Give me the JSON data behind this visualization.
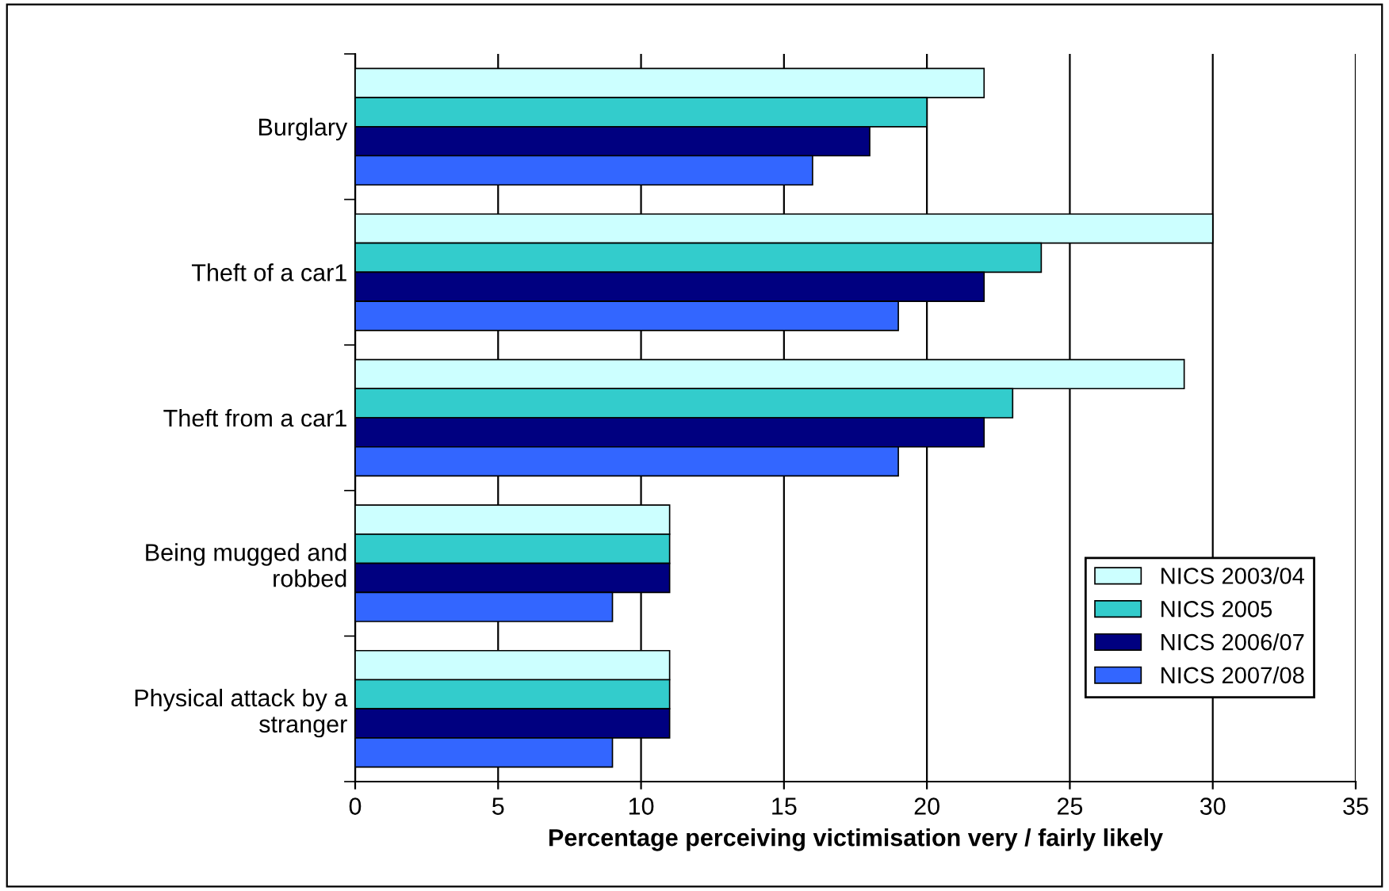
{
  "chart_data": {
    "type": "bar",
    "orientation": "horizontal",
    "xlabel": "Percentage perceiving victimisation very / fairly likely",
    "categories": [
      "Burglary",
      "Theft of a car1",
      "Theft from a car1",
      "Being mugged and\nrobbed",
      "Physical attack by a\nstranger"
    ],
    "series": [
      {
        "name": "NICS 2003/04",
        "color": "#ccffff",
        "values": [
          22,
          30,
          29,
          11,
          11
        ]
      },
      {
        "name": "NICS 2005",
        "color": "#33cccc",
        "values": [
          20,
          24,
          23,
          11,
          11
        ]
      },
      {
        "name": "NICS 2006/07",
        "color": "#000080",
        "values": [
          18,
          22,
          22,
          11,
          11
        ]
      },
      {
        "name": "NICS 2007/08",
        "color": "#3366ff",
        "values": [
          16,
          19,
          19,
          9,
          9
        ]
      }
    ],
    "xlim": [
      0,
      35
    ],
    "xticks": [
      0,
      5,
      10,
      15,
      20,
      25,
      30,
      35
    ],
    "grid": "x",
    "legend": "bottom right"
  }
}
